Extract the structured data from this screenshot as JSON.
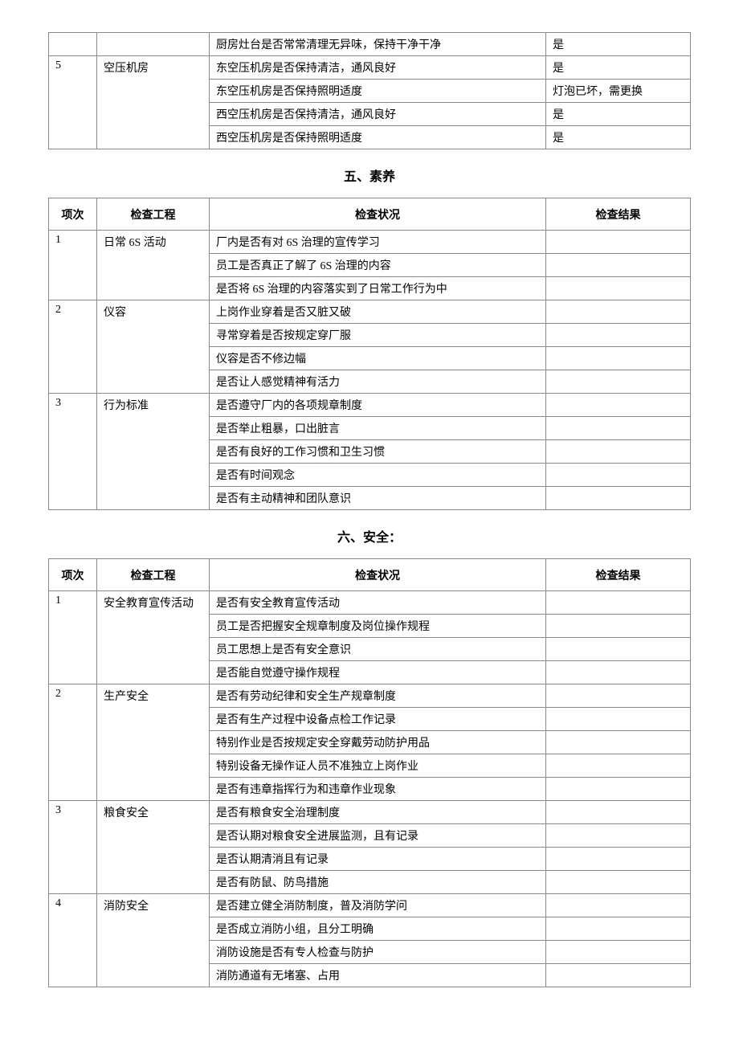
{
  "table1": {
    "rows": [
      {
        "num": "",
        "proj": "",
        "status": "厨房灶台是否常常清理无异味，保持干净干净",
        "result": "是"
      },
      {
        "num": "5",
        "proj": "空压机房",
        "status": "东空压机房是否保持清洁，通风良好",
        "result": "是"
      },
      {
        "num": "",
        "proj": "",
        "status": "东空压机房是否保持照明适度",
        "result": "灯泡已坏，需更换"
      },
      {
        "num": "",
        "proj": "",
        "status": "西空压机房是否保持清洁，通风良好",
        "result": "是"
      },
      {
        "num": "",
        "proj": "",
        "status": "西空压机房是否保持照明适度",
        "result": "是"
      }
    ]
  },
  "section5": {
    "title": "五、素养",
    "headers": {
      "num": "项次",
      "proj": "检查工程",
      "status": "检查状况",
      "result": "检查结果"
    },
    "groups": [
      {
        "num": "1",
        "proj": "日常 6S 活动",
        "items": [
          "厂内是否有对 6S 治理的宣传学习",
          "员工是否真正了解了 6S 治理的内容",
          "是否将 6S 治理的内容落实到了日常工作行为中"
        ]
      },
      {
        "num": "2",
        "proj": "仪容",
        "items": [
          "上岗作业穿着是否又脏又破",
          "寻常穿着是否按规定穿厂服",
          "仪容是否不修边幅",
          "是否让人感觉精神有活力"
        ]
      },
      {
        "num": "3",
        "proj": "行为标准",
        "items": [
          "是否遵守厂内的各项规章制度",
          "是否举止粗暴，口出脏言",
          "是否有良好的工作习惯和卫生习惯",
          "是否有时间观念",
          "是否有主动精神和团队意识"
        ]
      }
    ]
  },
  "section6": {
    "title": "六、安全：",
    "headers": {
      "num": "项次",
      "proj": "检查工程",
      "status": "检查状况",
      "result": "检查结果"
    },
    "groups": [
      {
        "num": "1",
        "proj": "安全教育宣传活动",
        "items": [
          "是否有安全教育宣传活动",
          "员工是否把握安全规章制度及岗位操作规程",
          "员工思想上是否有安全意识",
          "是否能自觉遵守操作规程"
        ]
      },
      {
        "num": "2",
        "proj": "生产安全",
        "items": [
          "是否有劳动纪律和安全生产规章制度",
          "是否有生产过程中设备点检工作记录",
          "特别作业是否按规定安全穿戴劳动防护用品",
          "特别设备无操作证人员不准独立上岗作业",
          "是否有违章指挥行为和违章作业现象"
        ]
      },
      {
        "num": "3",
        "proj": "粮食安全",
        "items": [
          "是否有粮食安全治理制度",
          "是否认期对粮食安全进展监测，且有记录",
          "是否认期清消且有记录",
          "是否有防鼠、防鸟措施"
        ]
      },
      {
        "num": "4",
        "proj": "消防安全",
        "items": [
          "是否建立健全消防制度，普及消防学问",
          "是否成立消防小组，且分工明确",
          "消防设施是否有专人检查与防护",
          "消防通道有无堵塞、占用"
        ]
      }
    ]
  }
}
